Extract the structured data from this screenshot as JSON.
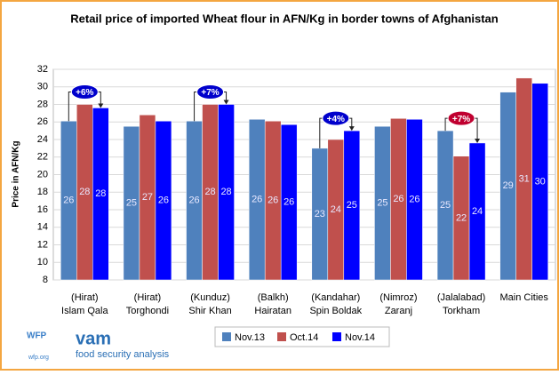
{
  "chart_data": {
    "type": "bar",
    "title": "Retail price of imported Wheat flour in AFN/Kg in border towns of Afghanistan",
    "ylabel": "Price in AFN/Kg",
    "categories": [
      [
        "(Hirat)",
        "Islam Qala"
      ],
      [
        "(Hirat)",
        "Torghondi"
      ],
      [
        "(Kunduz)",
        "Shir Khan"
      ],
      [
        "(Balkh)",
        "Hairatan"
      ],
      [
        "(Kandahar)",
        "Spin Boldak"
      ],
      [
        "(Nimroz)",
        "Zaranj"
      ],
      [
        "(Jalalabad)",
        "Torkham"
      ],
      [
        "Main Cities"
      ]
    ],
    "series": [
      {
        "name": "Nov.13",
        "color": "#4f81bd",
        "values": [
          26.1,
          25.5,
          26.1,
          26.3,
          23.0,
          25.5,
          25.0,
          29.4
        ],
        "value_labels": [
          "26",
          "25",
          "26",
          "26",
          "23",
          "25",
          "25",
          "29"
        ]
      },
      {
        "name": "Oct.14",
        "color": "#c0504d",
        "values": [
          28.0,
          26.8,
          28.0,
          26.1,
          24.0,
          26.4,
          22.1,
          31.0
        ],
        "value_labels": [
          "28",
          "27",
          "28",
          "26",
          "24",
          "26",
          "22",
          "31"
        ]
      },
      {
        "name": "Nov.14",
        "color": "#0000ff",
        "values": [
          27.6,
          26.1,
          28.0,
          25.7,
          25.0,
          26.3,
          23.6,
          30.4
        ],
        "value_labels": [
          "28",
          "26",
          "28",
          "26",
          "25",
          "26",
          "24",
          "30"
        ]
      }
    ],
    "ylim": [
      8,
      32
    ],
    "yticks": [
      8,
      10,
      12,
      14,
      16,
      18,
      20,
      22,
      24,
      26,
      28,
      30,
      32
    ],
    "grid": true,
    "legend": "bottom",
    "annotations": [
      {
        "text": "+6%",
        "category": 0,
        "color": "#0000cc"
      },
      {
        "text": "+7%",
        "category": 2,
        "color": "#0000cc"
      },
      {
        "text": "+4%",
        "category": 4,
        "color": "#0000cc"
      },
      {
        "text": "+7%",
        "category": 6,
        "color": "#c00030"
      }
    ]
  },
  "footer": {
    "logo": "WFP",
    "logo_url": "wfp.org",
    "brand": "vam",
    "tagline": "food security analysis"
  }
}
